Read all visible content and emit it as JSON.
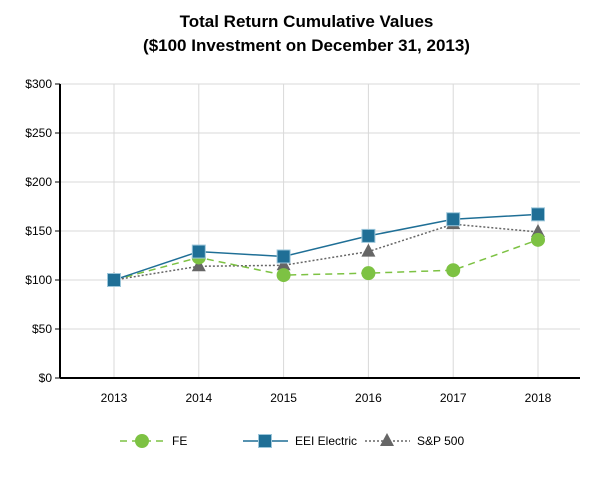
{
  "chart_data": {
    "type": "line",
    "title": "Total Return Cumulative Values",
    "subtitle": "($100 Investment on December 31, 2013)",
    "categories": [
      "2013",
      "2014",
      "2015",
      "2016",
      "2017",
      "2018"
    ],
    "y_ticks": [
      "$0",
      "$50",
      "$100",
      "$150",
      "$200",
      "$250",
      "$300"
    ],
    "ylim": [
      0,
      300
    ],
    "grid": true,
    "legend_placement": "bottom",
    "series": [
      {
        "name": "FE",
        "values": [
          100,
          123,
          105,
          107,
          110,
          141
        ],
        "color": "#7dc243",
        "marker": "circle",
        "line": "dashed"
      },
      {
        "name": "EEI Electric",
        "values": [
          100,
          129,
          124,
          145,
          162,
          167
        ],
        "color": "#1f6f96",
        "marker": "square",
        "line": "solid"
      },
      {
        "name": "S&P 500",
        "values": [
          100,
          114,
          115,
          129,
          157,
          149
        ],
        "color": "#666666",
        "marker": "triangle",
        "line": "dotted"
      }
    ]
  }
}
